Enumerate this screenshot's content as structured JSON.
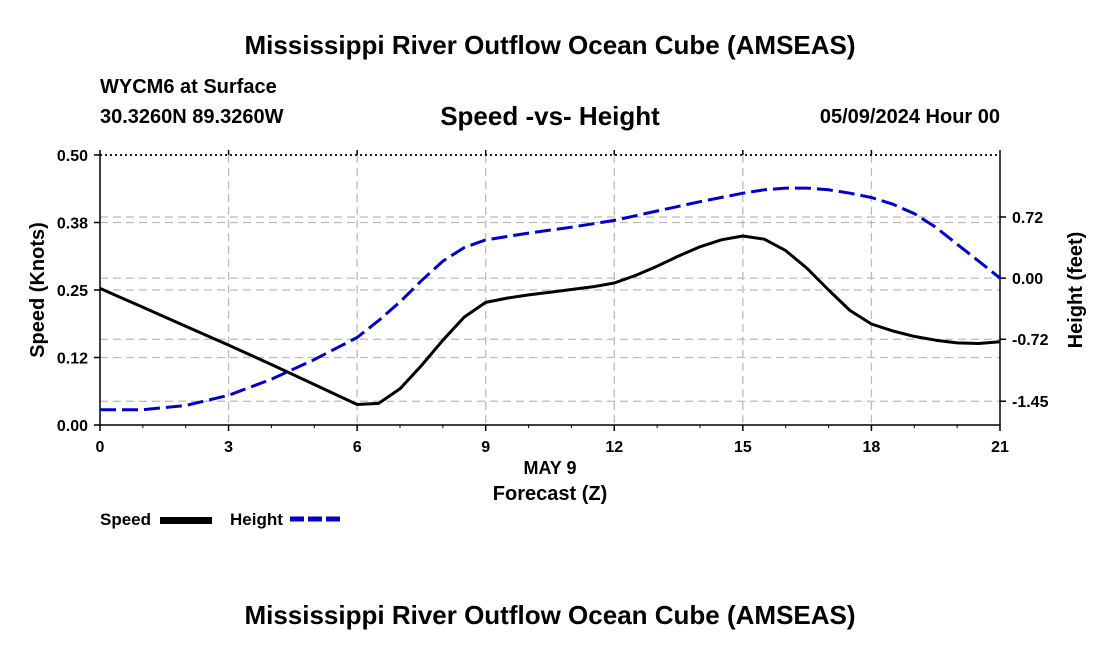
{
  "page": {
    "title_top": "Mississippi River Outflow Ocean Cube (AMSEAS)",
    "title_bottom": "Mississippi River Outflow Ocean Cube (AMSEAS)",
    "station": "WYCM6 at Surface",
    "coords": "30.3260N  89.3260W",
    "datetime": "05/09/2024 Hour 00"
  },
  "chart_data": {
    "type": "line",
    "title": "Speed -vs- Height",
    "xlabel": "Forecast (Z)",
    "xlabel_date": "MAY 9",
    "ylabel_left": "Speed (Knots)",
    "ylabel_right": "Height (feet)",
    "xlim": [
      0,
      21
    ],
    "ylim_left": [
      0,
      0.5
    ],
    "ylim_right": [
      -1.73,
      1.45
    ],
    "x_ticks": [
      0,
      3,
      6,
      9,
      12,
      15,
      18,
      21
    ],
    "x_tick_labels": [
      "0",
      "3",
      "6",
      "9",
      "12",
      "15",
      "18",
      "21"
    ],
    "y_left_ticks": [
      0,
      0.125,
      0.25,
      0.375,
      0.5
    ],
    "y_left_tick_labels": [
      "0.00",
      "0.12",
      "0.25",
      "0.38",
      "0.50"
    ],
    "y_right_ticks": [
      -1.45,
      -0.72,
      0,
      0.72
    ],
    "y_right_tick_labels": [
      "-1.45",
      "-0.72",
      "0.00",
      "0.72"
    ],
    "grid": true,
    "legend_position": "bottom-left",
    "series": [
      {
        "name": "Speed",
        "axis": "left",
        "color": "#000000",
        "style": "solid",
        "x": [
          0,
          1,
          2,
          3,
          4,
          5,
          6,
          6.5,
          7,
          7.5,
          8,
          8.5,
          9,
          9.5,
          10,
          10.5,
          11,
          11.5,
          12,
          12.5,
          13,
          13.5,
          14,
          14.5,
          15,
          15.5,
          16,
          16.5,
          17,
          17.5,
          18,
          18.5,
          19,
          19.5,
          20,
          20.5,
          21
        ],
        "values": [
          0.253,
          0.218,
          0.183,
          0.148,
          0.112,
          0.075,
          0.038,
          0.04,
          0.067,
          0.11,
          0.157,
          0.2,
          0.227,
          0.235,
          0.241,
          0.246,
          0.251,
          0.256,
          0.263,
          0.277,
          0.294,
          0.313,
          0.33,
          0.343,
          0.35,
          0.344,
          0.323,
          0.29,
          0.25,
          0.212,
          0.187,
          0.174,
          0.164,
          0.157,
          0.152,
          0.151,
          0.154
        ]
      },
      {
        "name": "Height",
        "axis": "right",
        "color": "#0000cc",
        "style": "dashed",
        "x": [
          0,
          1,
          2,
          3,
          4,
          5,
          6,
          6.5,
          7,
          7.5,
          8,
          8.5,
          9,
          10,
          11,
          12,
          13,
          14,
          15,
          15.5,
          16,
          16.5,
          17,
          17.5,
          18,
          18.5,
          19,
          19.5,
          20,
          20.5,
          21
        ],
        "values": [
          -1.55,
          -1.55,
          -1.5,
          -1.38,
          -1.19,
          -0.96,
          -0.7,
          -0.5,
          -0.28,
          -0.03,
          0.2,
          0.36,
          0.45,
          0.53,
          0.6,
          0.68,
          0.79,
          0.9,
          1.0,
          1.04,
          1.06,
          1.06,
          1.04,
          1.0,
          0.95,
          0.87,
          0.76,
          0.6,
          0.4,
          0.2,
          0.0
        ]
      }
    ]
  }
}
